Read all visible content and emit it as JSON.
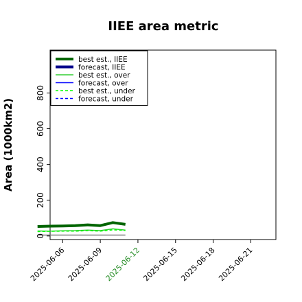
{
  "chart_data": {
    "type": "line",
    "title": "IIEE area metric",
    "xlabel": "",
    "ylabel": "Area (1000km2)",
    "x_ticks": [
      "2025-06-06",
      "2025-06-09",
      "2025-06-12",
      "2025-06-15",
      "2025-06-18",
      "2025-06-21"
    ],
    "highlighted_tick": "2025-06-12",
    "highlight_color": "#228B22",
    "y_ticks": [
      0,
      200,
      400,
      600,
      800
    ],
    "xlim": [
      "2025-06-05",
      "2025-06-23"
    ],
    "ylim": [
      -20,
      1040
    ],
    "grid": false,
    "legend_position": "top-left",
    "series": [
      {
        "name": "best est., IIEE",
        "color": "#006400",
        "style": "solid",
        "weight": "thick",
        "x": [
          "2025-06-04",
          "2025-06-05",
          "2025-06-06",
          "2025-06-07",
          "2025-06-08",
          "2025-06-09",
          "2025-06-10",
          "2025-06-11"
        ],
        "y": [
          53,
          55,
          56,
          58,
          62,
          58,
          75,
          65
        ]
      },
      {
        "name": "forecast, IIEE",
        "color": "#00008B",
        "style": "solid",
        "weight": "thick",
        "x": [],
        "y": []
      },
      {
        "name": "best est., over",
        "color": "#32CD32",
        "style": "solid",
        "weight": "thin",
        "x": [
          "2025-06-04",
          "2025-06-05",
          "2025-06-06",
          "2025-06-07",
          "2025-06-08",
          "2025-06-09",
          "2025-06-10",
          "2025-06-11"
        ],
        "y": [
          28,
          27,
          29,
          30,
          33,
          30,
          40,
          33
        ]
      },
      {
        "name": "forecast, over",
        "color": "#0000FF",
        "style": "solid",
        "weight": "thin",
        "x": [],
        "y": []
      },
      {
        "name": "best est., under",
        "color": "#00FF00",
        "style": "dashed",
        "weight": "thin",
        "x": [
          "2025-06-04",
          "2025-06-05",
          "2025-06-06",
          "2025-06-07",
          "2025-06-08",
          "2025-06-09",
          "2025-06-10",
          "2025-06-11"
        ],
        "y": [
          24,
          26,
          27,
          27,
          30,
          27,
          34,
          31
        ]
      },
      {
        "name": "forecast, under",
        "color": "#0000FF",
        "style": "dashed",
        "weight": "thin",
        "x": [],
        "y": []
      },
      {
        "name": "",
        "color": "#7F7F7F",
        "style": "solid",
        "weight": "thin",
        "x": [
          "2025-06-04",
          "2025-06-11"
        ],
        "y": [
          5,
          5
        ]
      }
    ]
  }
}
